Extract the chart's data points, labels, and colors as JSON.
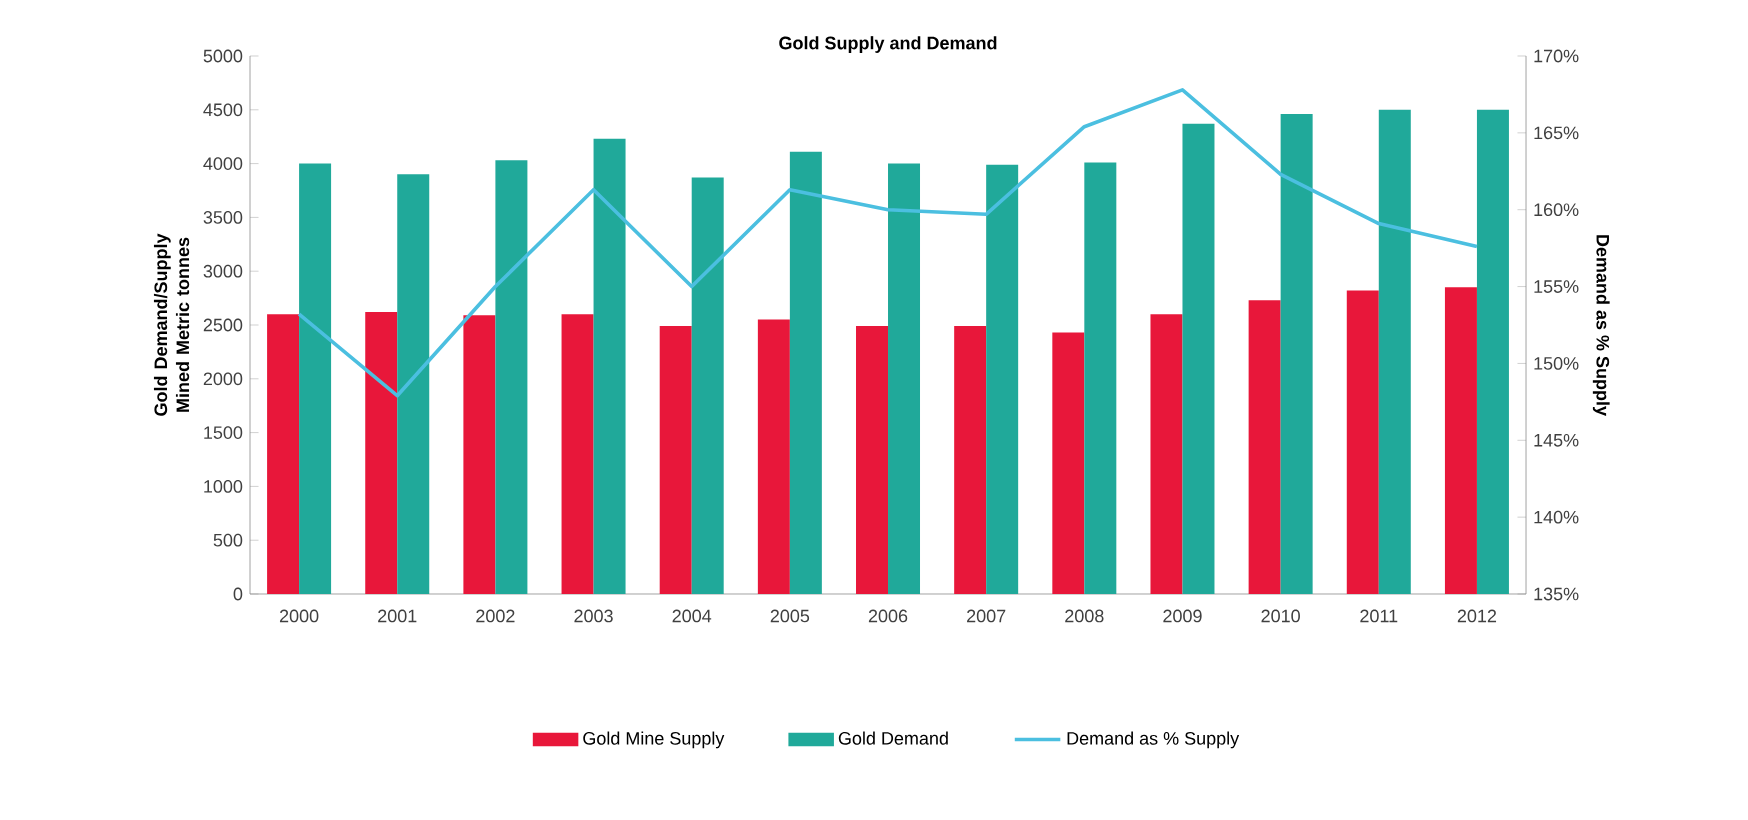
{
  "chart_data": {
    "type": "bar",
    "title": "Gold Supply and Demand",
    "ylabel": "Gold Demand/Supply Mined Metric tonnes",
    "y2label": "Demand as % Supply",
    "categories": [
      "2000",
      "2001",
      "2002",
      "2003",
      "2004",
      "2005",
      "2006",
      "2007",
      "2008",
      "2009",
      "2010",
      "2011",
      "2012"
    ],
    "series": [
      {
        "name": "Gold Mine Supply",
        "color": "#e8173a",
        "values": [
          2600,
          2620,
          2590,
          2600,
          2490,
          2550,
          2490,
          2490,
          2430,
          2600,
          2730,
          2820,
          2850
        ]
      },
      {
        "name": "Gold Demand",
        "color": "#20a99a",
        "values": [
          4000,
          3900,
          4030,
          4230,
          3870,
          4110,
          4000,
          3990,
          4010,
          4370,
          4460,
          4500,
          4500
        ]
      },
      {
        "name": "Demand as % Supply",
        "type": "line",
        "axis": "y2",
        "color": "#4bbfe0",
        "values": [
          153.2,
          147.9,
          155,
          161.3,
          155,
          161.3,
          160,
          159.7,
          165.4,
          167.8,
          162.3,
          159.1,
          157.6
        ]
      }
    ],
    "ylim": [
      0,
      5000
    ],
    "yticks": [
      0,
      500,
      1000,
      1500,
      2000,
      2500,
      3000,
      3500,
      4000,
      4500,
      5000
    ],
    "y2lim": [
      135,
      170
    ],
    "y2ticks": [
      {
        "value": 135,
        "label": "135%"
      },
      {
        "value": 140,
        "label": "140%"
      },
      {
        "value": 145,
        "label": "145%"
      },
      {
        "value": 150,
        "label": "150%"
      },
      {
        "value": 155,
        "label": "155%"
      },
      {
        "value": 160,
        "label": "160%"
      },
      {
        "value": 165,
        "label": "165%"
      },
      {
        "value": 170,
        "label": "170%"
      }
    ],
    "grid": false,
    "legend": "bottom",
    "marker": "none"
  }
}
